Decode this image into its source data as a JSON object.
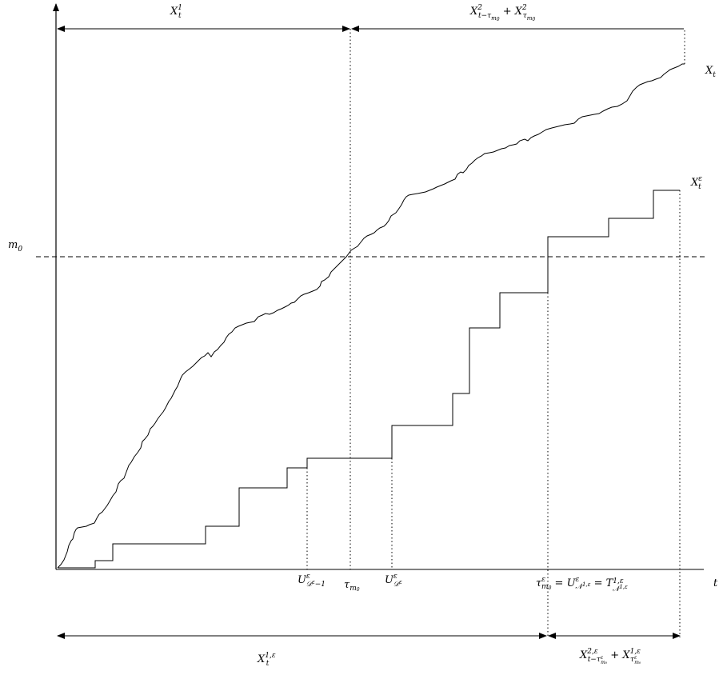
{
  "labels": {
    "x1t": "X",
    "x1t_sup": "1",
    "x1t_sub": "t",
    "top_right": "X²_{t−τ_{m₀}} + X²_{τ_{m₀}}",
    "xt": "X",
    "xt_sub": "t",
    "xeps": "X",
    "xeps_sup": "ε",
    "xeps_sub": "t",
    "m0": "m",
    "m0_sub": "0",
    "t_axis": "t",
    "u_dminus1": "U^ε_{𝒟^ε−1}",
    "tau_m0": "τ_{m₀}",
    "u_d": "U^ε_{𝒟^ε}",
    "tau_eps": "τ^ε_{m₀} = U^ε_{𝒩^{1,ε}} = T^{1,ε}_{𝒩^{1,ε}}",
    "bottom_left": "X^{1,ε}_t",
    "bottom_right": "X^{2,ε}_{t−τ^ε_{m₀}} + X^{1,ε}_{τ^ε_{m₀}}"
  }
}
